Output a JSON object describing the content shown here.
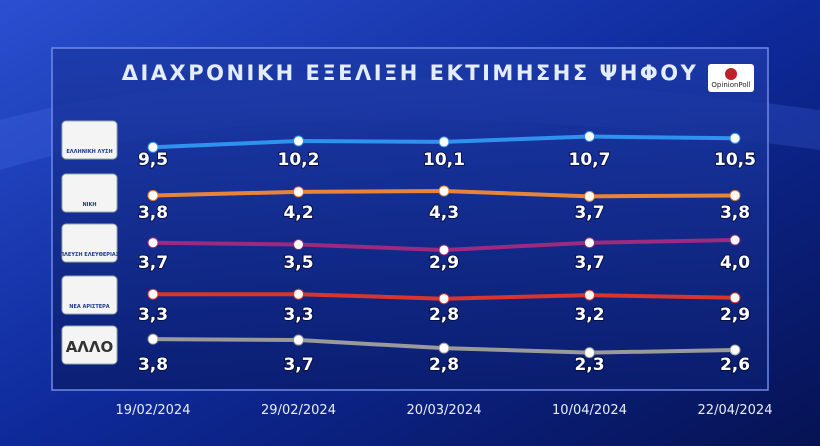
{
  "chart_data": {
    "type": "line",
    "title": "ΔΙΑΧΡΟΝΙΚΗ ΕΞΕΛΙΞΗ ΕΚΤΙΜΗΣΗΣ ΨΗΦΟΥ",
    "source_logo": "OpinionPoll",
    "categories": [
      "19/02/2024",
      "29/02/2024",
      "20/03/2024",
      "10/04/2024",
      "22/04/2024"
    ],
    "series": [
      {
        "name": "ΕΛΛΗΝΙΚΗ ΛΥΣΗ",
        "color": "#2f92ee",
        "values": [
          9.5,
          10.2,
          10.1,
          10.7,
          10.5
        ],
        "value_labels": [
          "9,5",
          "10,2",
          "10,1",
          "10,7",
          "10,5"
        ]
      },
      {
        "name": "ΝΙΚΗ",
        "color": "#e8843a",
        "values": [
          3.8,
          4.2,
          4.3,
          3.7,
          3.8
        ],
        "value_labels": [
          "3,8",
          "4,2",
          "4,3",
          "3,7",
          "3,8"
        ]
      },
      {
        "name": "ΠΛΕΥΣΗ ΕΛΕΥΘΕΡΙΑΣ",
        "color": "#9c2a80",
        "values": [
          3.7,
          3.5,
          2.9,
          3.7,
          4.0
        ],
        "value_labels": [
          "3,7",
          "3,5",
          "2,9",
          "3,7",
          "4,0"
        ]
      },
      {
        "name": "ΝΕΑ ΑΡΙΣΤΕΡΑ",
        "color": "#d8352e",
        "values": [
          3.3,
          3.3,
          2.8,
          3.2,
          2.9
        ],
        "value_labels": [
          "3,3",
          "3,3",
          "2,8",
          "3,2",
          "2,9"
        ]
      },
      {
        "name": "ΑΛΛΟ",
        "color": "#9a9a9a",
        "values": [
          3.8,
          3.7,
          2.8,
          2.3,
          2.6
        ],
        "value_labels": [
          "3,8",
          "3,7",
          "2,8",
          "2,3",
          "2,6"
        ]
      }
    ]
  }
}
